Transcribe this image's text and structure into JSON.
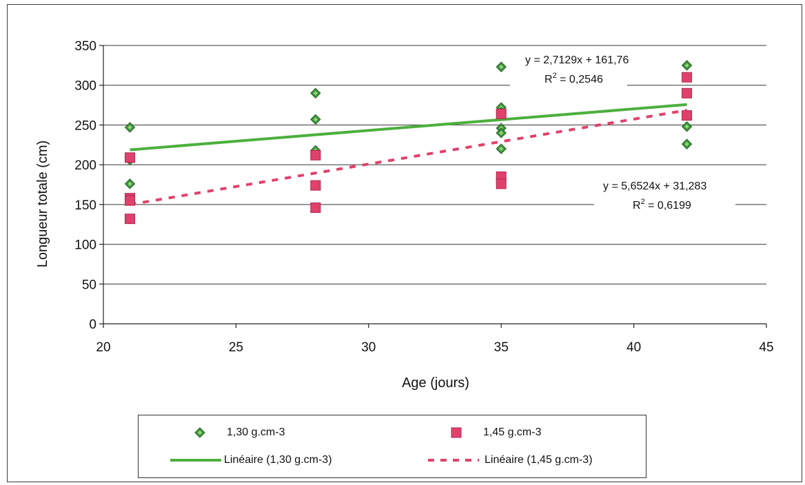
{
  "chart_data": {
    "type": "scatter",
    "title": "",
    "xlabel": "Age (jours)",
    "ylabel": "Longueur totale (cm)",
    "xlim": [
      20,
      45
    ],
    "ylim": [
      0,
      350
    ],
    "xticks": [
      "20",
      "25",
      "30",
      "35",
      "40",
      "45"
    ],
    "yticks": [
      "0",
      "50",
      "100",
      "150",
      "200",
      "250",
      "300",
      "350"
    ],
    "grid": "horizontal",
    "legend_position": "bottom",
    "series": [
      {
        "name": "1,30 g.cm-3",
        "marker": "diamond",
        "color": "#3f9a3f",
        "points": [
          [
            21,
            247
          ],
          [
            21,
            206
          ],
          [
            21,
            176
          ],
          [
            28,
            290
          ],
          [
            28,
            257
          ],
          [
            28,
            218
          ],
          [
            35,
            323
          ],
          [
            35,
            272
          ],
          [
            35,
            266
          ],
          [
            35,
            246
          ],
          [
            35,
            240
          ],
          [
            35,
            220
          ],
          [
            42,
            325
          ],
          [
            42,
            248
          ],
          [
            42,
            226
          ]
        ]
      },
      {
        "name": "1,45 g.cm-3",
        "marker": "square",
        "color": "#e0416a",
        "points": [
          [
            21,
            209
          ],
          [
            21,
            158
          ],
          [
            21,
            155
          ],
          [
            21,
            132
          ],
          [
            28,
            212
          ],
          [
            28,
            174
          ],
          [
            28,
            146
          ],
          [
            35,
            264
          ],
          [
            35,
            185
          ],
          [
            35,
            176
          ],
          [
            42,
            310
          ],
          [
            42,
            290
          ],
          [
            42,
            262
          ]
        ]
      }
    ],
    "trendlines": [
      {
        "name": "Linéaire (1,30 g.cm-3)",
        "slope": 2.7129,
        "intercept": 161.76,
        "x_range": [
          21,
          42
        ],
        "style": "solid",
        "color": "#4caf3d",
        "equation": "y = 2,7129x + 161,76",
        "r2_prefix": "R",
        "r2_sup": "2",
        "r2_value": " = 0,2546"
      },
      {
        "name": "Linéaire (1,45 g.cm-3)",
        "slope": 5.6524,
        "intercept": 31.283,
        "x_range": [
          21,
          42
        ],
        "style": "dashed",
        "color": "#e0416a",
        "equation": "y = 5,6524x + 31,283",
        "r2_prefix": "R",
        "r2_sup": "2",
        "r2_value": " = 0,6199"
      }
    ]
  },
  "legend": {
    "items": [
      {
        "label": "1,30 g.cm-3"
      },
      {
        "label": "1,45 g.cm-3"
      },
      {
        "label": "Linéaire (1,30 g.cm-3)"
      },
      {
        "label": "Linéaire (1,45 g.cm-3)"
      }
    ]
  }
}
